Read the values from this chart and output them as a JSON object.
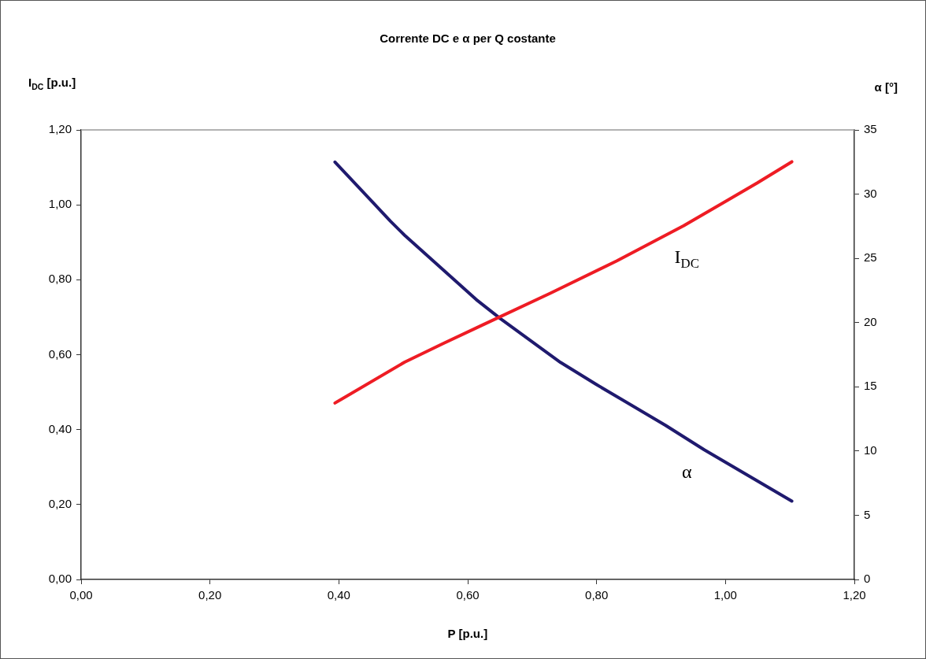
{
  "chart_data": {
    "type": "line",
    "title": "Corrente DC e α per Q costante",
    "xlabel": "P [p.u.]",
    "ylabel": "I$_{DC}$ [p.u.]",
    "y2label": "α [°]",
    "xlim": [
      0,
      1.2
    ],
    "xticks": [
      {
        "value": 0,
        "label": "0,00"
      },
      {
        "value": 0.2,
        "label": "0,20"
      },
      {
        "value": 0.4,
        "label": "0,40"
      },
      {
        "value": 0.6,
        "label": "0,60"
      },
      {
        "value": 0.8,
        "label": "0,80"
      },
      {
        "value": 1,
        "label": "1,00"
      },
      {
        "value": 1.2,
        "label": "1,20"
      }
    ],
    "ylim": [
      0,
      1.2
    ],
    "yticks": [
      {
        "value": 0,
        "label": "0,00"
      },
      {
        "value": 0.2,
        "label": "0,20"
      },
      {
        "value": 0.4,
        "label": "0,40"
      },
      {
        "value": 0.6,
        "label": "0,60"
      },
      {
        "value": 0.8,
        "label": "0,80"
      },
      {
        "value": 1,
        "label": "1,00"
      },
      {
        "value": 1.2,
        "label": "1,20"
      }
    ],
    "y2lim": [
      0,
      35
    ],
    "y2ticks": [
      0,
      5,
      10,
      15,
      20,
      25,
      30,
      35
    ],
    "marker": "none",
    "line_style": "solid",
    "series": [
      {
        "color": "#ee1c24",
        "x": [
          0.394,
          0.502,
          0.562,
          0.624,
          0.728,
          0.831,
          0.935,
          1.049,
          1.103
        ],
        "values": [
          0.471,
          0.58,
          0.63,
          0.68,
          0.764,
          0.85,
          0.944,
          1.058,
          1.115
        ]
      },
      {
        "color": "#1f1a6e",
        "axis": "y2",
        "x": [
          0.394,
          0.48,
          0.502,
          0.613,
          0.651,
          0.744,
          0.799,
          0.907,
          0.967,
          1.103
        ],
        "values": [
          32.5,
          27.9,
          26.8,
          21.8,
          20.3,
          16.9,
          15.2,
          12,
          10.1,
          6.1
        ]
      }
    ],
    "annotations": [
      "I$_{DC}$",
      "α"
    ]
  }
}
